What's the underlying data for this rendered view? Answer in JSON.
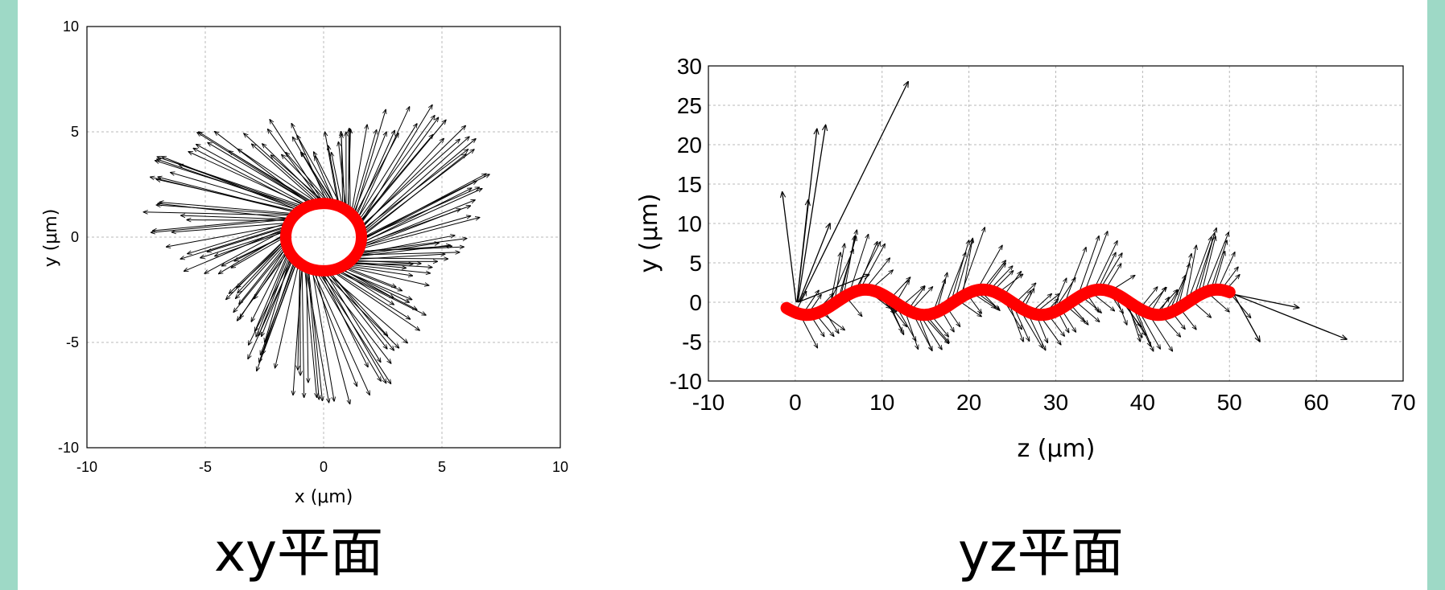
{
  "colors": {
    "edge": "#9ed9c6",
    "arrow": "#000000",
    "trajectory": "#ff0000",
    "grid": "#b8b8b8"
  },
  "captions": {
    "xy": "xy平面",
    "yz": "yz平面"
  },
  "chart_data": [
    {
      "type": "scatter",
      "panel": "xy",
      "xlabel": "x (μm)",
      "ylabel": "y (μm)",
      "xlim": [
        -10,
        10
      ],
      "ylim": [
        -10,
        10
      ],
      "xticks": [
        -10,
        -5,
        0,
        5,
        10
      ],
      "yticks": [
        -10,
        -5,
        0,
        5,
        10
      ],
      "grid": true,
      "trajectory": {
        "shape": "ring",
        "center": [
          0,
          0
        ],
        "radius": 1.6
      },
      "vectors": {
        "count": 170,
        "tail_radius": 1.6,
        "tip_radius_min": 3.5,
        "tip_radius_max": 8.0
      }
    },
    {
      "type": "line",
      "panel": "yz",
      "xlabel": "z (μm)",
      "ylabel": "y (μm)",
      "xlim": [
        -10,
        70
      ],
      "ylim": [
        -10,
        30
      ],
      "xticks": [
        -10,
        0,
        10,
        20,
        30,
        40,
        50,
        60,
        70
      ],
      "yticks": [
        -10,
        -5,
        0,
        5,
        10,
        15,
        20,
        25,
        30
      ],
      "grid": true,
      "trajectory": {
        "shape": "sine",
        "z_range": [
          0,
          50
        ],
        "amplitude": 1.6,
        "period": 13.5
      },
      "vectors": {
        "count": 130
      }
    }
  ]
}
